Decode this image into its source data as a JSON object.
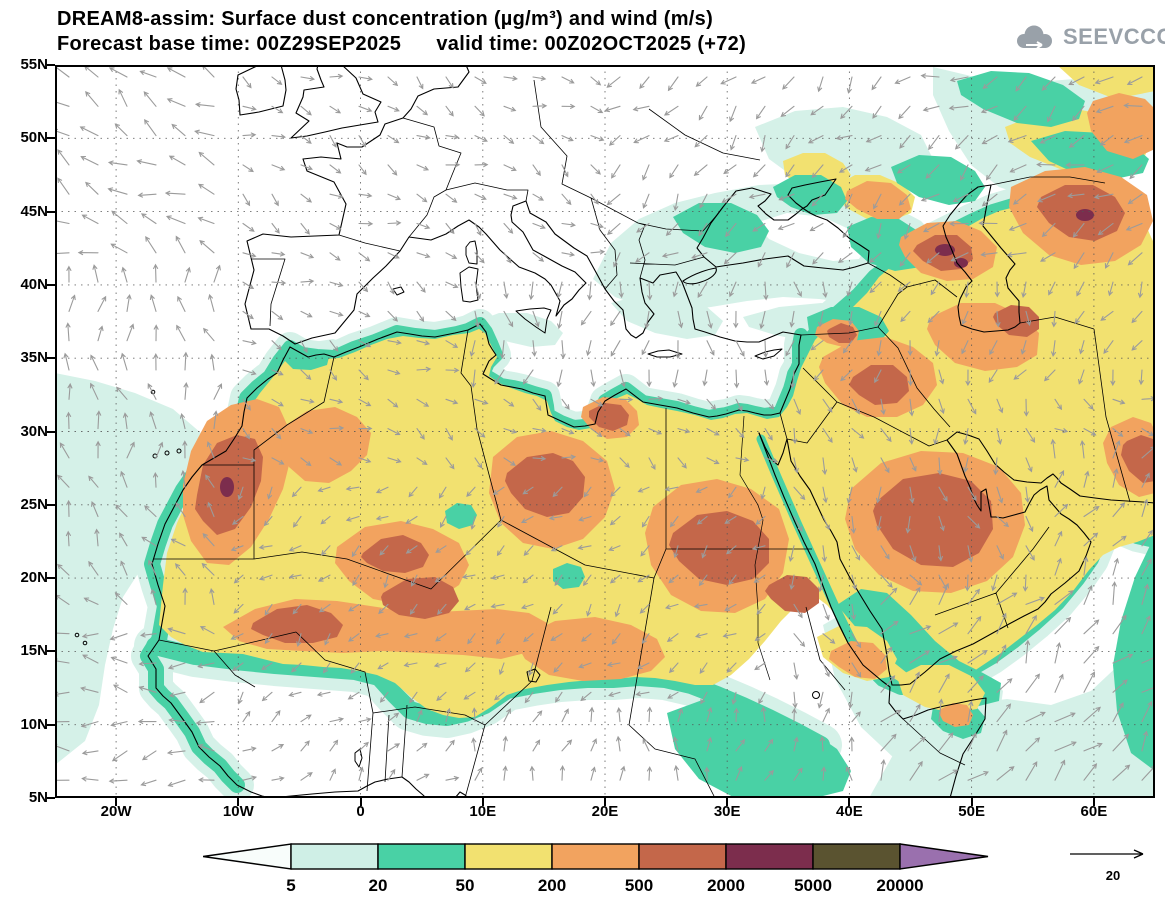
{
  "header": {
    "line1": "DREAM8-assim: Surface dust concentration (µg/m³) and wind (m/s)",
    "line2": "Forecast base time: 00Z29SEP2025      valid time: 00Z02OCT2025 (+72)"
  },
  "logo": {
    "text": "SEEVCCC"
  },
  "map": {
    "lat_ticks": [
      "55N",
      "50N",
      "45N",
      "40N",
      "35N",
      "30N",
      "25N",
      "20N",
      "15N",
      "10N",
      "5N"
    ],
    "lon_ticks": [
      "20W",
      "10W",
      "0",
      "10E",
      "20E",
      "30E",
      "40E",
      "50E",
      "60E"
    ],
    "lat_range": [
      "5N",
      "55N"
    ],
    "lon_range": [
      "25W",
      "65E"
    ],
    "wind_color": "#9b9b9b",
    "grid_color": "#555555",
    "coast_color": "#000000"
  },
  "colorbar": {
    "labels": [
      "5",
      "20",
      "50",
      "200",
      "500",
      "2000",
      "5000",
      "20000"
    ],
    "colors": [
      "#f8fdfb",
      "#cfefe6",
      "#49d1a5",
      "#f2e170",
      "#f2a35f",
      "#c4674a",
      "#7c2d4d",
      "#5a5330",
      "#9a70ae"
    ],
    "quantity": "surface dust concentration",
    "units": "µg/m³"
  },
  "wind_reference": {
    "label": "20",
    "units": "m/s"
  }
}
